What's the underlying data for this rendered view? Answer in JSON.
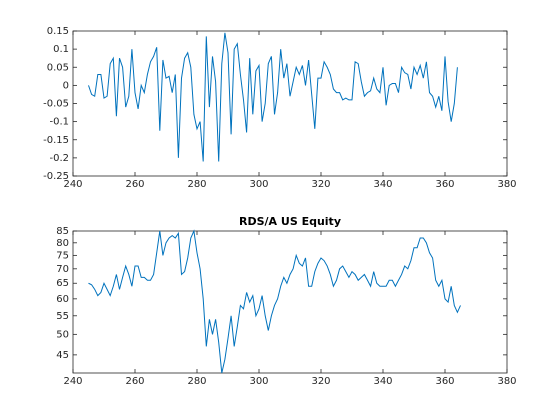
{
  "chart_data": [
    {
      "type": "line",
      "color": "#0072bd",
      "x": [
        245,
        246,
        247,
        248,
        249,
        250,
        251,
        252,
        253,
        254,
        255,
        256,
        257,
        258,
        259,
        260,
        261,
        262,
        263,
        264,
        265,
        266,
        267,
        268,
        269,
        270,
        271,
        272,
        273,
        274,
        275,
        276,
        277,
        278,
        279,
        280,
        281,
        282,
        283,
        284,
        285,
        286,
        287,
        288,
        289,
        290,
        291,
        292,
        293,
        294,
        295,
        296,
        297,
        298,
        299,
        300,
        301,
        302,
        303,
        304,
        305,
        306,
        307,
        308,
        309,
        310,
        311,
        312,
        313,
        314,
        315,
        316,
        317,
        318,
        319,
        320,
        321,
        322,
        323,
        324,
        325,
        326,
        327,
        328,
        329,
        330,
        331,
        332,
        333,
        334,
        335,
        336,
        337,
        338,
        339,
        340,
        341,
        342,
        343,
        344,
        345,
        346,
        347,
        348,
        349,
        350,
        351,
        352,
        353,
        354,
        355,
        356,
        357,
        358,
        359,
        360,
        361,
        362,
        363,
        364
      ],
      "values": [
        0,
        -0.025,
        -0.03,
        0.03,
        0.03,
        -0.035,
        -0.03,
        0.06,
        0.075,
        -0.085,
        0.075,
        0.05,
        -0.06,
        -0.03,
        0.1,
        -0.02,
        -0.065,
        0,
        -0.02,
        0.03,
        0.065,
        0.08,
        0.105,
        -0.125,
        0.07,
        0.02,
        0.025,
        -0.02,
        0.03,
        -0.2,
        0.02,
        0.075,
        0.09,
        0.05,
        -0.08,
        -0.12,
        -0.1,
        -0.21,
        0.135,
        -0.06,
        0.08,
        0.01,
        -0.21,
        0.06,
        0.145,
        0.09,
        -0.135,
        0.1,
        0.115,
        0.03,
        -0.04,
        -0.13,
        0.075,
        -0.08,
        0.04,
        0.055,
        -0.1,
        -0.05,
        0.06,
        0.08,
        -0.08,
        -0.02,
        0.1,
        0.02,
        0.06,
        -0.03,
        0.01,
        0.05,
        0.03,
        0.055,
        0,
        0.07,
        -0.025,
        -0.12,
        0.02,
        0.02,
        0.065,
        0.05,
        0.03,
        -0.01,
        -0.02,
        -0.02,
        -0.04,
        -0.035,
        -0.04,
        -0.04,
        0.065,
        0.06,
        0.01,
        -0.03,
        -0.02,
        -0.015,
        0.02,
        -0.01,
        -0.02,
        0.05,
        -0.055,
        0,
        0.005,
        0.005,
        -0.02,
        0.05,
        0.035,
        0.03,
        -0.01,
        0.05,
        0.03,
        0.055,
        0.02,
        0.065,
        -0.02,
        -0.03,
        -0.06,
        -0.03,
        -0.07,
        0.08,
        -0.045,
        -0.1,
        -0.05,
        0.05
      ],
      "xlim": [
        240,
        380
      ],
      "xticks": [
        240,
        260,
        280,
        300,
        320,
        340,
        360,
        380
      ],
      "ylim": [
        -0.25,
        0.15
      ],
      "yticks": [
        -0.25,
        -0.2,
        -0.15,
        -0.1,
        -0.05,
        0,
        0.05,
        0.1,
        0.15
      ]
    },
    {
      "type": "line",
      "title": "RDS/A US Equity",
      "color": "#0072bd",
      "yscale": "log",
      "x": [
        245,
        246,
        247,
        248,
        249,
        250,
        251,
        252,
        253,
        254,
        255,
        256,
        257,
        258,
        259,
        260,
        261,
        262,
        263,
        264,
        265,
        266,
        267,
        268,
        269,
        270,
        271,
        272,
        273,
        274,
        275,
        276,
        277,
        278,
        279,
        280,
        281,
        282,
        283,
        284,
        285,
        286,
        287,
        288,
        289,
        290,
        291,
        292,
        293,
        294,
        295,
        296,
        297,
        298,
        299,
        300,
        301,
        302,
        303,
        304,
        305,
        306,
        307,
        308,
        309,
        310,
        311,
        312,
        313,
        314,
        315,
        316,
        317,
        318,
        319,
        320,
        321,
        322,
        323,
        324,
        325,
        326,
        327,
        328,
        329,
        330,
        331,
        332,
        333,
        334,
        335,
        336,
        337,
        338,
        339,
        340,
        341,
        342,
        343,
        344,
        345,
        346,
        347,
        348,
        349,
        350,
        351,
        352,
        353,
        354,
        355,
        356,
        357,
        358,
        359,
        360,
        361,
        362,
        363,
        364,
        365
      ],
      "values": [
        65,
        64.5,
        63,
        61,
        62,
        65,
        63,
        61,
        64,
        68,
        63,
        67,
        71,
        68,
        64,
        71,
        71,
        67,
        67,
        66,
        66,
        68,
        76,
        85,
        75,
        80,
        82,
        83,
        82,
        84,
        68,
        69,
        74,
        82,
        85,
        76,
        70,
        60,
        47,
        54,
        50,
        54,
        48,
        41,
        44,
        49,
        55,
        47,
        52,
        58,
        57,
        62,
        59,
        61,
        55,
        57,
        61,
        55,
        51,
        55,
        58,
        60,
        64,
        67,
        65,
        68,
        70,
        75,
        72,
        71,
        74,
        64,
        64,
        69,
        72,
        74,
        73,
        71,
        68,
        64,
        66,
        70,
        71,
        69,
        67,
        69,
        68,
        66,
        67,
        68,
        66,
        64,
        69,
        65,
        64,
        64,
        64,
        66,
        66,
        64,
        66,
        68,
        71,
        70,
        73,
        78,
        78,
        82,
        82,
        80,
        76,
        74,
        66,
        64,
        66,
        60,
        59,
        64,
        58,
        56,
        58
      ],
      "xlim": [
        240,
        380
      ],
      "xticks": [
        240,
        260,
        280,
        300,
        320,
        340,
        360,
        380
      ],
      "ylim": [
        41,
        85
      ],
      "yticks": [
        45,
        50,
        55,
        60,
        65,
        70,
        75,
        80,
        85
      ]
    }
  ]
}
